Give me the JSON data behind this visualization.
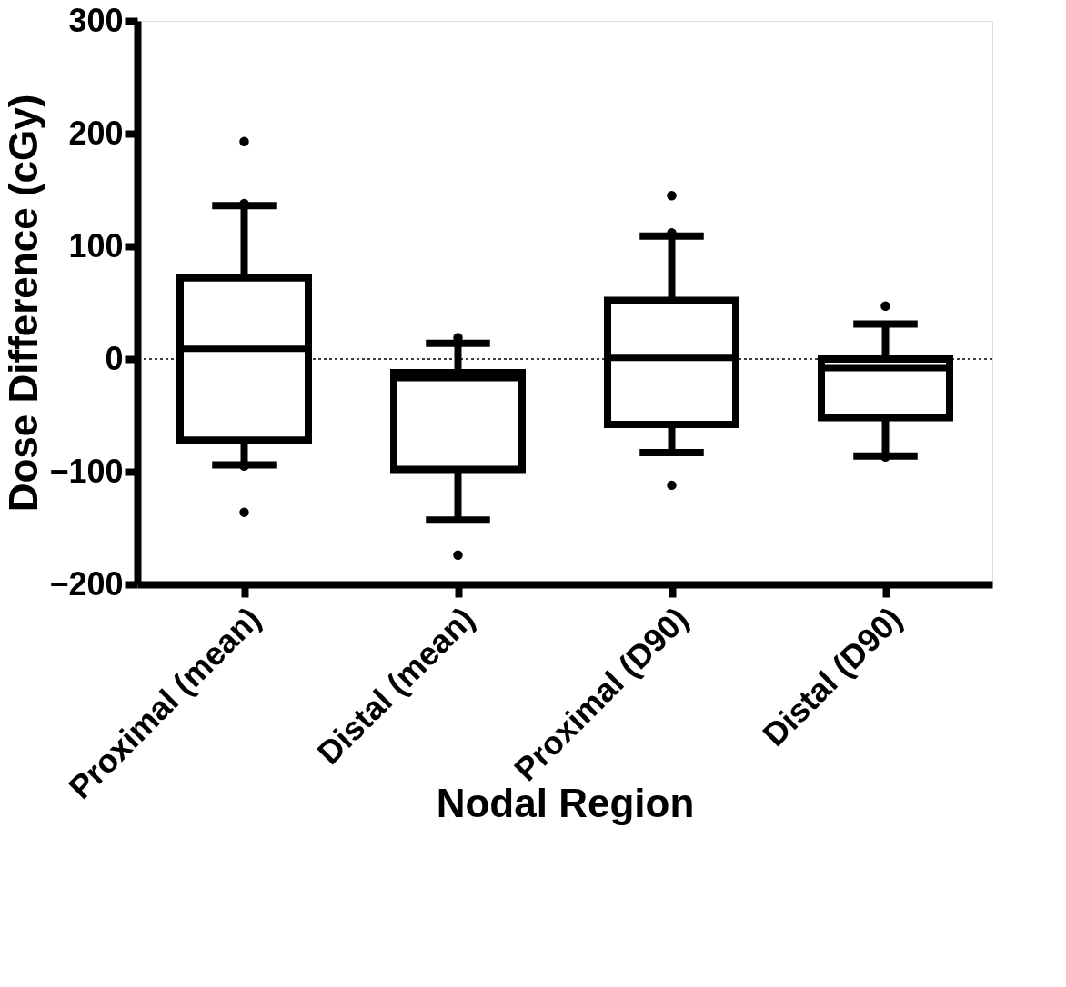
{
  "chart_data": {
    "type": "box",
    "xlabel": "Nodal  Region",
    "ylabel": "Dose  Difference (cGy)",
    "categories": [
      "Proximal (mean)",
      "Distal (mean)",
      "Proximal (D90)",
      "Distal (D90)"
    ],
    "boxes": [
      {
        "low": -94,
        "q1": -72,
        "median": 9,
        "q3": 72,
        "high": 136,
        "outliers": [
          193,
          138,
          -95,
          -136
        ]
      },
      {
        "low": -143,
        "q1": -98,
        "median": -17,
        "q3": -12,
        "high": 14,
        "outliers": [
          19,
          -174
        ]
      },
      {
        "low": -83,
        "q1": -58,
        "median": 1,
        "q3": 52,
        "high": 109,
        "outliers": [
          145,
          112,
          -112
        ]
      },
      {
        "low": -86,
        "q1": -52,
        "median": -8,
        "q3": 0,
        "high": 31,
        "outliers": [
          47,
          -87
        ]
      }
    ],
    "ylim": [
      -200,
      300
    ],
    "yticks": [
      -200,
      -100,
      0,
      100,
      200,
      300
    ],
    "grid": false,
    "ref_lines": [
      {
        "axis": "y",
        "value": 0,
        "line_style": "dotted",
        "color": "#000000"
      }
    ]
  }
}
